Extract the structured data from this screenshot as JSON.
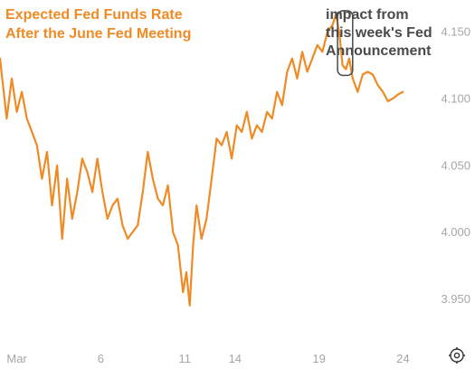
{
  "chart_data": {
    "type": "line",
    "title_lines": [
      "Expected Fed Funds Rate",
      "After the June Fed Meeting"
    ],
    "xlabel": "",
    "ylabel": "",
    "x_tick_labels": [
      "Mar",
      "6",
      "11",
      "14",
      "19",
      "24"
    ],
    "x_tick_positions": [
      0,
      5,
      10,
      13,
      18,
      23
    ],
    "xlim": [
      -1,
      24
    ],
    "y_ticks": [
      3.95,
      4.0,
      4.05,
      4.1,
      4.15
    ],
    "y_tick_labels": [
      "3.950",
      "4.000",
      "4.050",
      "4.100",
      "4.150"
    ],
    "ylim": [
      3.93,
      4.167
    ],
    "grid": false,
    "series": [
      {
        "color": "#f08a24",
        "x": [
          -1.0,
          -0.6,
          -0.3,
          0.0,
          0.3,
          0.6,
          0.9,
          1.2,
          1.5,
          1.8,
          2.1,
          2.4,
          2.7,
          3.0,
          3.3,
          3.6,
          3.9,
          4.2,
          4.5,
          4.8,
          5.1,
          5.4,
          5.7,
          6.0,
          6.3,
          6.6,
          6.9,
          7.2,
          7.5,
          7.8,
          8.1,
          8.4,
          8.7,
          9.0,
          9.3,
          9.6,
          9.9,
          10.1,
          10.3,
          10.5,
          10.7,
          11.0,
          11.3,
          11.6,
          11.9,
          12.2,
          12.5,
          12.8,
          13.1,
          13.4,
          13.7,
          14.0,
          14.3,
          14.6,
          14.9,
          15.2,
          15.5,
          15.8,
          16.1,
          16.4,
          16.7,
          17.0,
          17.3,
          17.6,
          17.9,
          18.2,
          18.5,
          18.8,
          19.0,
          19.2,
          19.4,
          19.6,
          19.8,
          20.0,
          20.3,
          20.6,
          20.9,
          21.2,
          21.5,
          21.8,
          22.1,
          22.4,
          22.7,
          23.0
        ],
        "values": [
          4.13,
          4.085,
          4.115,
          4.09,
          4.105,
          4.085,
          4.075,
          4.065,
          4.04,
          4.06,
          4.02,
          4.05,
          3.995,
          4.04,
          4.01,
          4.03,
          4.055,
          4.045,
          4.03,
          4.055,
          4.03,
          4.01,
          4.02,
          4.025,
          4.005,
          3.995,
          4.0,
          4.005,
          4.03,
          4.06,
          4.04,
          4.025,
          4.02,
          4.035,
          4.0,
          3.99,
          3.955,
          3.97,
          3.945,
          3.99,
          4.02,
          3.995,
          4.01,
          4.04,
          4.07,
          4.065,
          4.075,
          4.055,
          4.08,
          4.075,
          4.09,
          4.07,
          4.08,
          4.075,
          4.09,
          4.085,
          4.105,
          4.095,
          4.12,
          4.13,
          4.115,
          4.135,
          4.12,
          4.13,
          4.14,
          4.135,
          4.15,
          4.155,
          4.163,
          4.15,
          4.125,
          4.122,
          4.13,
          4.115,
          4.105,
          4.118,
          4.12,
          4.118,
          4.11,
          4.105,
          4.098,
          4.1,
          4.103,
          4.105
        ]
      }
    ],
    "annotation": {
      "lines": [
        "impact from",
        "this week's Fed",
        "Announcement"
      ],
      "x_start": 19.1,
      "x_end": 20.0,
      "y_low": 4.12,
      "y_high": 4.163
    },
    "corner_icon": "gear-icon"
  }
}
